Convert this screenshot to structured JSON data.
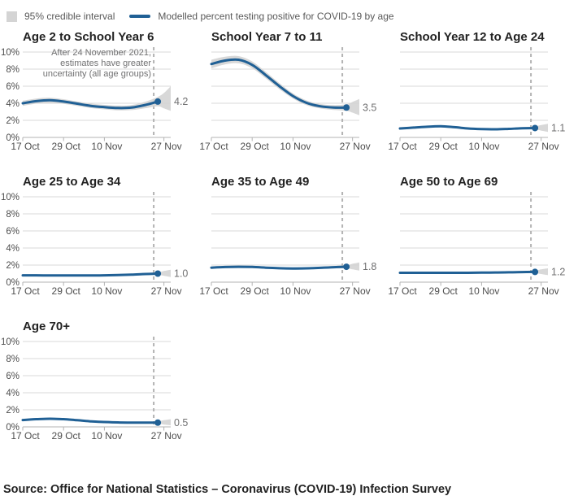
{
  "legend": {
    "ci_label": "95% credible interval",
    "line_label": "Modelled percent testing positive for COVID-19 by age"
  },
  "annotation": {
    "lines": [
      "After 24 November 2021,",
      "estimates have greater",
      "uncertainty (all age groups)"
    ]
  },
  "source": "Source: Office for National Statistics – Coronavirus (COVID-19) Infection Survey",
  "colors": {
    "line": "#206095",
    "band": "#d4d4d4",
    "grid": "#d9d9d9",
    "axis": "#b3b3b3",
    "dashed": "#b3b3b3",
    "value_label": "#707071",
    "axis_text": "#4d4d4d",
    "title_text": "#222222"
  },
  "axes": {
    "ylim": [
      0,
      10
    ],
    "y_tick_labels": [
      "0%",
      "2%",
      "4%",
      "6%",
      "8%",
      "10%"
    ],
    "y_tick_values": [
      0,
      2,
      4,
      6,
      8,
      10
    ],
    "x_ticks": [
      {
        "day": 0,
        "label": "17 Oct"
      },
      {
        "day": 12,
        "label": "29 Oct"
      },
      {
        "day": 24,
        "label": "10 Nov"
      },
      {
        "day": 41.5,
        "label": "27 Nov"
      }
    ],
    "x_max_day": 43.5,
    "dashed_day": 38.5,
    "dot_day": 39.7,
    "grid": "on"
  },
  "chart_data": [
    {
      "type": "line",
      "title": "Age 2 to School Year 6",
      "end_label": "4.2",
      "days": [
        0,
        4,
        8,
        12,
        16,
        20,
        24,
        28,
        32,
        36,
        39.7
      ],
      "values": [
        4.0,
        4.25,
        4.35,
        4.2,
        3.95,
        3.7,
        3.55,
        3.45,
        3.5,
        3.8,
        4.2
      ],
      "band_days": [
        0,
        4,
        8,
        12,
        16,
        20,
        24,
        28,
        32,
        36,
        39.7,
        41.5,
        43.5
      ],
      "band_upper": [
        4.3,
        4.55,
        4.65,
        4.48,
        4.21,
        3.96,
        3.81,
        3.73,
        3.8,
        4.18,
        4.75,
        5.2,
        6.0
      ],
      "band_lower": [
        3.7,
        3.95,
        4.05,
        3.92,
        3.69,
        3.44,
        3.29,
        3.17,
        3.2,
        3.42,
        3.65,
        3.4,
        3.1
      ]
    },
    {
      "type": "line",
      "title": "School Year 7 to 11",
      "end_label": "3.5",
      "days": [
        0,
        4,
        8,
        12,
        16,
        20,
        24,
        28,
        32,
        36,
        39.7
      ],
      "values": [
        8.6,
        9.0,
        9.1,
        8.5,
        7.3,
        6.0,
        4.85,
        4.05,
        3.65,
        3.5,
        3.5
      ],
      "band_days": [
        0,
        4,
        8,
        12,
        16,
        20,
        24,
        28,
        32,
        36,
        39.7,
        41.5,
        43.5
      ],
      "band_upper": [
        9.1,
        9.45,
        9.52,
        8.9,
        7.68,
        6.35,
        5.15,
        4.33,
        3.91,
        3.78,
        3.88,
        4.15,
        4.5
      ],
      "band_lower": [
        8.1,
        8.55,
        8.68,
        8.1,
        6.92,
        5.65,
        4.55,
        3.77,
        3.39,
        3.22,
        3.12,
        2.9,
        2.6
      ]
    },
    {
      "type": "line",
      "title": "School Year 12 to Age 24",
      "end_label": "1.1",
      "days": [
        0,
        4,
        8,
        12,
        16,
        20,
        24,
        28,
        32,
        36,
        39.7
      ],
      "values": [
        1.05,
        1.15,
        1.25,
        1.3,
        1.2,
        1.05,
        0.97,
        0.95,
        1.0,
        1.07,
        1.1
      ],
      "band_days": [
        0,
        4,
        8,
        12,
        16,
        20,
        24,
        28,
        32,
        36,
        39.7,
        41.5,
        43.5
      ],
      "band_upper": [
        1.17,
        1.27,
        1.37,
        1.42,
        1.32,
        1.17,
        1.07,
        1.05,
        1.1,
        1.19,
        1.28,
        1.45,
        1.6
      ],
      "band_lower": [
        0.93,
        1.03,
        1.13,
        1.18,
        1.08,
        0.93,
        0.87,
        0.85,
        0.9,
        0.95,
        0.92,
        0.8,
        0.65
      ]
    },
    {
      "type": "line",
      "title": "Age 25 to Age 34",
      "end_label": "1.0",
      "days": [
        0,
        4,
        8,
        12,
        16,
        20,
        24,
        28,
        32,
        36,
        39.7
      ],
      "values": [
        0.8,
        0.8,
        0.78,
        0.78,
        0.78,
        0.78,
        0.8,
        0.83,
        0.88,
        0.95,
        1.0
      ],
      "band_days": [
        0,
        4,
        8,
        12,
        16,
        20,
        24,
        28,
        32,
        36,
        39.7,
        41.5,
        43.5
      ],
      "band_upper": [
        0.9,
        0.9,
        0.88,
        0.88,
        0.88,
        0.88,
        0.9,
        0.93,
        0.98,
        1.07,
        1.15,
        1.3,
        1.45
      ],
      "band_lower": [
        0.7,
        0.7,
        0.68,
        0.68,
        0.68,
        0.68,
        0.7,
        0.73,
        0.78,
        0.83,
        0.85,
        0.75,
        0.6
      ]
    },
    {
      "type": "line",
      "title": "Age 35 to Age 49",
      "end_label": "1.8",
      "days": [
        0,
        4,
        8,
        12,
        16,
        20,
        24,
        28,
        32,
        36,
        39.7
      ],
      "values": [
        1.7,
        1.77,
        1.8,
        1.78,
        1.7,
        1.63,
        1.6,
        1.62,
        1.68,
        1.75,
        1.8
      ],
      "band_days": [
        0,
        4,
        8,
        12,
        16,
        20,
        24,
        28,
        32,
        36,
        39.7,
        41.5,
        43.5
      ],
      "band_upper": [
        1.82,
        1.89,
        1.92,
        1.9,
        1.82,
        1.75,
        1.72,
        1.74,
        1.8,
        1.89,
        1.98,
        2.15,
        2.3
      ],
      "band_lower": [
        1.58,
        1.65,
        1.68,
        1.66,
        1.58,
        1.51,
        1.48,
        1.5,
        1.56,
        1.61,
        1.62,
        1.5,
        1.35
      ]
    },
    {
      "type": "line",
      "title": "Age 50 to Age 69",
      "end_label": "1.2",
      "days": [
        0,
        4,
        8,
        12,
        16,
        20,
        24,
        28,
        32,
        36,
        39.7
      ],
      "values": [
        1.1,
        1.1,
        1.1,
        1.1,
        1.1,
        1.1,
        1.12,
        1.13,
        1.15,
        1.18,
        1.2
      ],
      "band_days": [
        0,
        4,
        8,
        12,
        16,
        20,
        24,
        28,
        32,
        36,
        39.7,
        41.5,
        43.5
      ],
      "band_upper": [
        1.2,
        1.2,
        1.2,
        1.2,
        1.2,
        1.2,
        1.22,
        1.23,
        1.25,
        1.3,
        1.35,
        1.5,
        1.62
      ],
      "band_lower": [
        1.0,
        1.0,
        1.0,
        1.0,
        1.0,
        1.0,
        1.02,
        1.03,
        1.05,
        1.08,
        1.05,
        0.95,
        0.82
      ]
    },
    {
      "type": "line",
      "title": "Age 70+",
      "end_label": "0.5",
      "days": [
        0,
        4,
        8,
        12,
        16,
        20,
        24,
        28,
        32,
        36,
        39.7
      ],
      "values": [
        0.8,
        0.9,
        0.95,
        0.9,
        0.78,
        0.65,
        0.57,
        0.52,
        0.5,
        0.5,
        0.5
      ],
      "band_days": [
        0,
        4,
        8,
        12,
        16,
        20,
        24,
        28,
        32,
        36,
        39.7,
        41.5,
        43.5
      ],
      "band_upper": [
        0.9,
        1.0,
        1.05,
        1.0,
        0.88,
        0.75,
        0.67,
        0.62,
        0.6,
        0.62,
        0.65,
        0.78,
        0.9
      ],
      "band_lower": [
        0.7,
        0.8,
        0.85,
        0.8,
        0.68,
        0.55,
        0.47,
        0.42,
        0.4,
        0.38,
        0.37,
        0.28,
        0.18
      ]
    }
  ]
}
